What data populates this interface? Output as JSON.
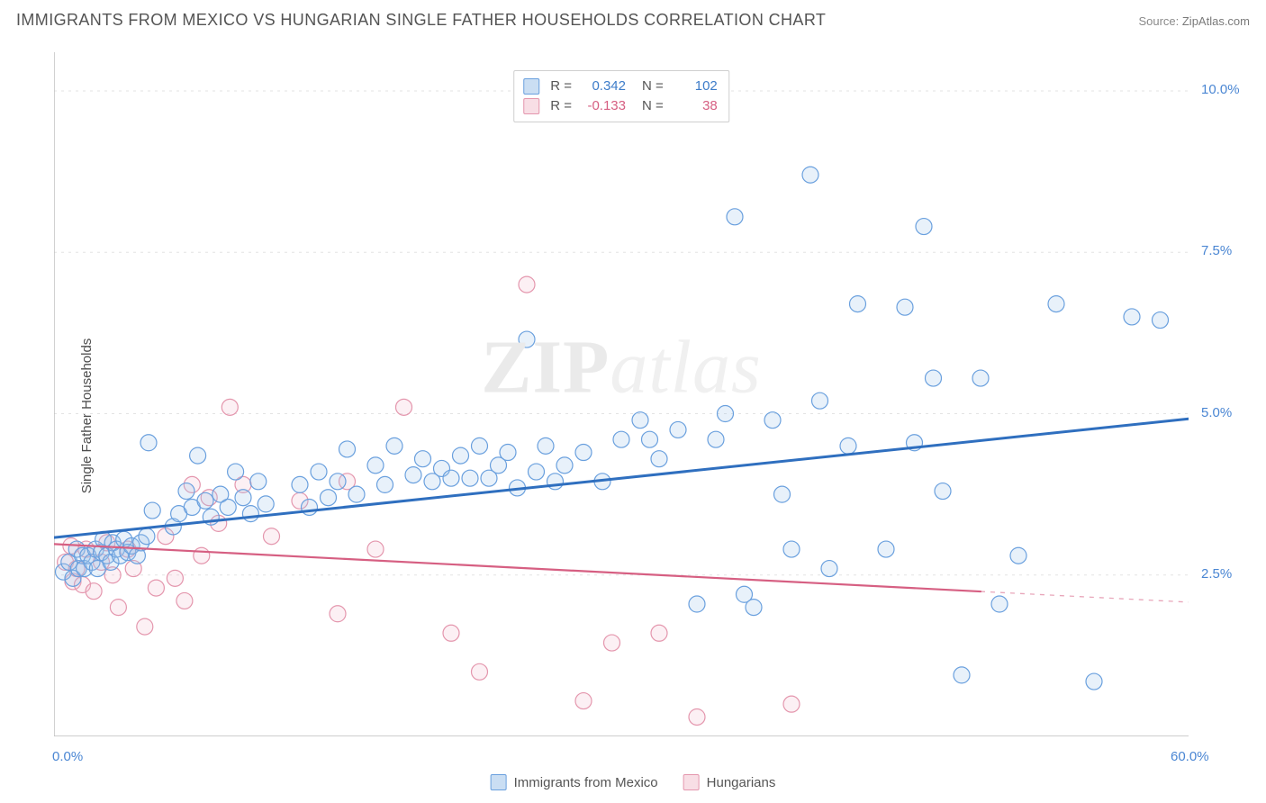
{
  "header": {
    "title": "IMMIGRANTS FROM MEXICO VS HUNGARIAN SINGLE FATHER HOUSEHOLDS CORRELATION CHART",
    "source_prefix": "Source: ",
    "source_link": "ZipAtlas.com"
  },
  "watermark": {
    "left": "ZIP",
    "right": "atlas"
  },
  "chart": {
    "type": "scatter",
    "yaxis_label": "Single Father Households",
    "xlim": [
      0,
      60
    ],
    "ylim": [
      0,
      10.6
    ],
    "x_corner_labels": [
      "0.0%",
      "60.0%"
    ],
    "x_corner_color": "#4a86d3",
    "x_tick_positions": [
      6.3,
      25.8,
      45.3
    ],
    "y_right_ticks": [
      {
        "value": 2.5,
        "label": "2.5%"
      },
      {
        "value": 5.0,
        "label": "5.0%"
      },
      {
        "value": 7.5,
        "label": "7.5%"
      },
      {
        "value": 10.0,
        "label": "10.0%"
      }
    ],
    "y_right_tick_color": "#4a86d3",
    "grid_color": "#e3e3e3",
    "axis_color": "#bdbdbd",
    "tick_color": "#b8b8b8",
    "background": "#ffffff",
    "marker_radius": 9,
    "marker_stroke_width": 1.2,
    "marker_fill_opacity": 0.24,
    "series": [
      {
        "key": "mexico",
        "label": "Immigrants from Mexico",
        "color_stroke": "#6aa0de",
        "color_fill": "#9fc3ea",
        "trend": {
          "color": "#2f6fbf",
          "width": 3,
          "y_at_x0": 3.08,
          "y_at_x60": 4.92,
          "solid_to_x": 60,
          "dash_from_x": 60
        },
        "stats": {
          "R": "0.342",
          "N": "102",
          "value_color": "#3d7cc9"
        },
        "points": [
          [
            0.5,
            2.55
          ],
          [
            0.8,
            2.7
          ],
          [
            1.0,
            2.45
          ],
          [
            1.2,
            2.9
          ],
          [
            1.3,
            2.6
          ],
          [
            1.5,
            2.8
          ],
          [
            1.6,
            2.6
          ],
          [
            1.8,
            2.8
          ],
          [
            2.0,
            2.7
          ],
          [
            2.2,
            2.9
          ],
          [
            2.3,
            2.6
          ],
          [
            2.5,
            2.85
          ],
          [
            2.6,
            3.05
          ],
          [
            2.8,
            2.8
          ],
          [
            3.0,
            2.7
          ],
          [
            3.1,
            3.0
          ],
          [
            3.3,
            2.9
          ],
          [
            3.5,
            2.8
          ],
          [
            3.7,
            3.05
          ],
          [
            3.9,
            2.85
          ],
          [
            4.1,
            2.95
          ],
          [
            4.4,
            2.8
          ],
          [
            4.6,
            3.0
          ],
          [
            4.9,
            3.1
          ],
          [
            5.2,
            3.5
          ],
          [
            5.0,
            4.55
          ],
          [
            6.3,
            3.25
          ],
          [
            6.6,
            3.45
          ],
          [
            7.0,
            3.8
          ],
          [
            7.3,
            3.55
          ],
          [
            7.6,
            4.35
          ],
          [
            8.0,
            3.65
          ],
          [
            8.3,
            3.4
          ],
          [
            8.8,
            3.75
          ],
          [
            9.2,
            3.55
          ],
          [
            9.6,
            4.1
          ],
          [
            10.0,
            3.7
          ],
          [
            10.4,
            3.45
          ],
          [
            10.8,
            3.95
          ],
          [
            11.2,
            3.6
          ],
          [
            13.0,
            3.9
          ],
          [
            13.5,
            3.55
          ],
          [
            14.0,
            4.1
          ],
          [
            14.5,
            3.7
          ],
          [
            15.0,
            3.95
          ],
          [
            15.5,
            4.45
          ],
          [
            16.0,
            3.75
          ],
          [
            17.0,
            4.2
          ],
          [
            17.5,
            3.9
          ],
          [
            18.0,
            4.5
          ],
          [
            19.0,
            4.05
          ],
          [
            19.5,
            4.3
          ],
          [
            20.0,
            3.95
          ],
          [
            20.5,
            4.15
          ],
          [
            21.0,
            4.0
          ],
          [
            21.5,
            4.35
          ],
          [
            22.0,
            4.0
          ],
          [
            22.5,
            4.5
          ],
          [
            23.0,
            4.0
          ],
          [
            23.5,
            4.2
          ],
          [
            24.0,
            4.4
          ],
          [
            24.5,
            3.85
          ],
          [
            25.0,
            6.15
          ],
          [
            25.5,
            4.1
          ],
          [
            26.0,
            4.5
          ],
          [
            26.5,
            3.95
          ],
          [
            27.0,
            4.2
          ],
          [
            28.0,
            4.4
          ],
          [
            29.0,
            3.95
          ],
          [
            30.0,
            4.6
          ],
          [
            31.0,
            4.9
          ],
          [
            31.5,
            4.6
          ],
          [
            32.0,
            4.3
          ],
          [
            33.0,
            4.75
          ],
          [
            34.0,
            2.05
          ],
          [
            35.0,
            4.6
          ],
          [
            35.5,
            5.0
          ],
          [
            36.0,
            8.05
          ],
          [
            36.5,
            2.2
          ],
          [
            37.0,
            2.0
          ],
          [
            38.0,
            4.9
          ],
          [
            38.5,
            3.75
          ],
          [
            39.0,
            2.9
          ],
          [
            40.0,
            8.7
          ],
          [
            40.5,
            5.2
          ],
          [
            41.0,
            2.6
          ],
          [
            42.0,
            4.5
          ],
          [
            42.5,
            6.7
          ],
          [
            44.0,
            2.9
          ],
          [
            45.0,
            6.65
          ],
          [
            45.5,
            4.55
          ],
          [
            46.0,
            7.9
          ],
          [
            46.5,
            5.55
          ],
          [
            47.0,
            3.8
          ],
          [
            48.0,
            0.95
          ],
          [
            49.0,
            5.55
          ],
          [
            50.0,
            2.05
          ],
          [
            51.0,
            2.8
          ],
          [
            53.0,
            6.7
          ],
          [
            55.0,
            0.85
          ],
          [
            57.0,
            6.5
          ],
          [
            58.5,
            6.45
          ]
        ]
      },
      {
        "key": "hungarian",
        "label": "Hungarians",
        "color_stroke": "#e496ad",
        "color_fill": "#f3c2cf",
        "trend": {
          "color": "#d65f82",
          "width": 2.2,
          "y_at_x0": 2.98,
          "y_at_x60": 2.08,
          "solid_to_x": 49,
          "dash_from_x": 49
        },
        "stats": {
          "R": "-0.133",
          "N": "38",
          "value_color": "#d65f82"
        },
        "points": [
          [
            0.6,
            2.7
          ],
          [
            0.9,
            2.95
          ],
          [
            1.0,
            2.4
          ],
          [
            1.2,
            2.6
          ],
          [
            1.5,
            2.35
          ],
          [
            1.7,
            2.9
          ],
          [
            2.1,
            2.25
          ],
          [
            2.5,
            2.7
          ],
          [
            2.8,
            3.0
          ],
          [
            3.1,
            2.5
          ],
          [
            3.4,
            2.0
          ],
          [
            3.9,
            2.9
          ],
          [
            4.2,
            2.6
          ],
          [
            4.8,
            1.7
          ],
          [
            5.4,
            2.3
          ],
          [
            5.9,
            3.1
          ],
          [
            6.4,
            2.45
          ],
          [
            6.9,
            2.1
          ],
          [
            7.3,
            3.9
          ],
          [
            7.8,
            2.8
          ],
          [
            8.2,
            3.7
          ],
          [
            8.7,
            3.3
          ],
          [
            9.3,
            5.1
          ],
          [
            10.0,
            3.9
          ],
          [
            11.5,
            3.1
          ],
          [
            13.0,
            3.65
          ],
          [
            15.0,
            1.9
          ],
          [
            15.5,
            3.95
          ],
          [
            17.0,
            2.9
          ],
          [
            18.5,
            5.1
          ],
          [
            21.0,
            1.6
          ],
          [
            22.5,
            1.0
          ],
          [
            25.0,
            7.0
          ],
          [
            28.0,
            0.55
          ],
          [
            29.5,
            1.45
          ],
          [
            32.0,
            1.6
          ],
          [
            34.0,
            0.3
          ],
          [
            39.0,
            0.5
          ]
        ]
      }
    ],
    "stat_legend": {
      "R_label": "R =",
      "N_label": "N ="
    }
  }
}
